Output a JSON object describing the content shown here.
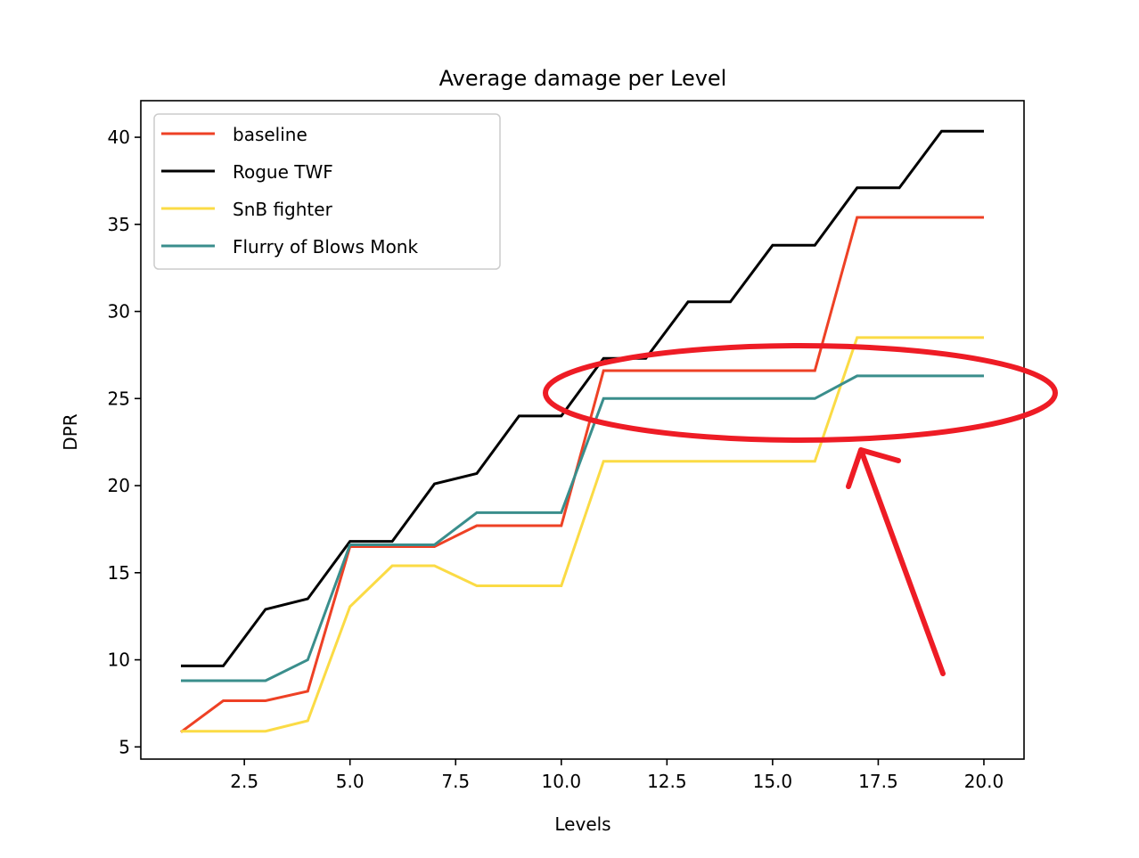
{
  "chart_data": {
    "type": "line",
    "title": "Average damage per Level",
    "xlabel": "Levels",
    "ylabel": "DPR",
    "xlim": [
      0.05,
      20.95
    ],
    "ylim": [
      4.3,
      42.1
    ],
    "xticks": [
      2.5,
      5.0,
      7.5,
      10.0,
      12.5,
      15.0,
      17.5,
      20.0
    ],
    "xtick_labels": [
      "2.5",
      "5.0",
      "7.5",
      "10.0",
      "12.5",
      "15.0",
      "17.5",
      "20.0"
    ],
    "yticks": [
      5,
      10,
      15,
      20,
      25,
      30,
      35,
      40
    ],
    "ytick_labels": [
      "5",
      "10",
      "15",
      "20",
      "25",
      "30",
      "35",
      "40"
    ],
    "grid": false,
    "legend_position": "top-left",
    "x": [
      1,
      2,
      3,
      4,
      5,
      6,
      7,
      8,
      9,
      10,
      11,
      12,
      13,
      14,
      15,
      16,
      17,
      18,
      19,
      20
    ],
    "series": [
      {
        "name": "baseline",
        "color": "#ee4125",
        "values": [
          5.85,
          7.65,
          7.65,
          8.2,
          16.5,
          16.5,
          16.5,
          17.7,
          17.7,
          17.7,
          26.6,
          26.6,
          26.6,
          26.6,
          26.6,
          26.6,
          35.4,
          35.4,
          35.4,
          35.4
        ]
      },
      {
        "name": "Rogue TWF",
        "color": "#000000",
        "values": [
          9.65,
          9.65,
          12.9,
          13.5,
          16.8,
          16.8,
          20.1,
          20.7,
          24.0,
          24.0,
          27.3,
          27.3,
          30.55,
          30.55,
          33.8,
          33.8,
          37.1,
          37.1,
          40.35,
          40.35
        ]
      },
      {
        "name": "SnB fighter",
        "color": "#fbdb45",
        "values": [
          5.9,
          5.9,
          5.9,
          6.5,
          13.05,
          15.4,
          15.4,
          14.25,
          14.25,
          14.25,
          21.4,
          21.4,
          21.4,
          21.4,
          21.4,
          21.4,
          28.5,
          28.5,
          28.5,
          28.5
        ]
      },
      {
        "name": "Flurry of Blows Monk",
        "color": "#3a8e8c",
        "values": [
          8.8,
          8.8,
          8.8,
          10.0,
          16.6,
          16.6,
          16.6,
          18.45,
          18.45,
          18.45,
          25.0,
          25.0,
          25.0,
          25.0,
          25.0,
          25.0,
          26.3,
          26.3,
          26.3,
          26.3
        ]
      }
    ],
    "annotations": [
      {
        "type": "hand-drawn-ellipse",
        "color": "#ee1c25",
        "around": "levels 10-20, DPR 22.5-28"
      },
      {
        "type": "hand-drawn-arrow",
        "color": "#ee1c25",
        "pointing_to": "ellipse near level 17"
      }
    ]
  }
}
